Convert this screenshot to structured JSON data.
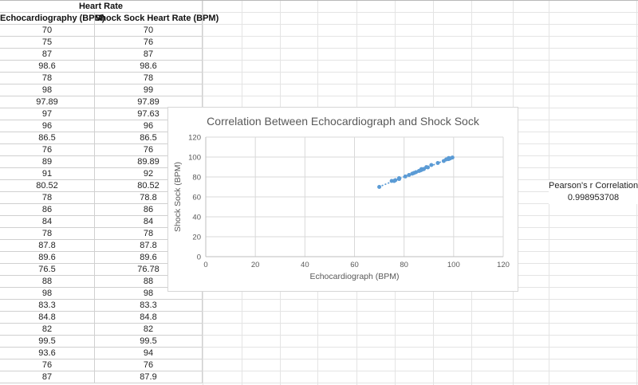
{
  "sheet": {
    "table": {
      "title": "Heart Rate",
      "columns": [
        "Echocardiography (BPM)",
        "Shock Sock Heart Rate (BPM)"
      ],
      "rows": [
        [
          "70",
          "70"
        ],
        [
          "75",
          "76"
        ],
        [
          "87",
          "87"
        ],
        [
          "98.6",
          "98.6"
        ],
        [
          "78",
          "78"
        ],
        [
          "98",
          "99"
        ],
        [
          "97.89",
          "97.89"
        ],
        [
          "97",
          "97.63"
        ],
        [
          "96",
          "96"
        ],
        [
          "86.5",
          "86.5"
        ],
        [
          "76",
          "76"
        ],
        [
          "89",
          "89.89"
        ],
        [
          "91",
          "92"
        ],
        [
          "80.52",
          "80.52"
        ],
        [
          "78",
          "78.8"
        ],
        [
          "86",
          "86"
        ],
        [
          "84",
          "84"
        ],
        [
          "78",
          "78"
        ],
        [
          "87.8",
          "87.8"
        ],
        [
          "89.6",
          "89.6"
        ],
        [
          "76.5",
          "76.78"
        ],
        [
          "88",
          "88"
        ],
        [
          "98",
          "98"
        ],
        [
          "83.3",
          "83.3"
        ],
        [
          "84.8",
          "84.8"
        ],
        [
          "82",
          "82"
        ],
        [
          "99.5",
          "99.5"
        ],
        [
          "93.6",
          "94"
        ],
        [
          "76",
          "76"
        ],
        [
          "87",
          "87.9"
        ]
      ]
    },
    "stats": {
      "label": "Pearson's r Correlation",
      "value": "0.998953708"
    }
  },
  "chart_data": {
    "type": "scatter",
    "title": "Correlation Between Echocardiograph and Shock Sock",
    "xlabel": "Echocardiograph (BPM)",
    "ylabel": "Shock Sock (BPM)",
    "xlim": [
      0,
      120
    ],
    "ylim": [
      0,
      120
    ],
    "xticks": [
      0,
      20,
      40,
      60,
      80,
      100,
      120
    ],
    "yticks": [
      0,
      20,
      40,
      60,
      80,
      100,
      120
    ],
    "grid": true,
    "legend": false,
    "marker_color": "#5B9BD5",
    "trendline": {
      "type": "linear",
      "style": "dotted",
      "color": "#5B9BD5"
    },
    "points": [
      [
        70,
        70
      ],
      [
        75,
        76
      ],
      [
        87,
        87
      ],
      [
        98.6,
        98.6
      ],
      [
        78,
        78
      ],
      [
        98,
        99
      ],
      [
        97.89,
        97.89
      ],
      [
        97,
        97.63
      ],
      [
        96,
        96
      ],
      [
        86.5,
        86.5
      ],
      [
        76,
        76
      ],
      [
        89,
        89.89
      ],
      [
        91,
        92
      ],
      [
        80.52,
        80.52
      ],
      [
        78,
        78.8
      ],
      [
        86,
        86
      ],
      [
        84,
        84
      ],
      [
        78,
        78
      ],
      [
        87.8,
        87.8
      ],
      [
        89.6,
        89.6
      ],
      [
        76.5,
        76.78
      ],
      [
        88,
        88
      ],
      [
        98,
        98
      ],
      [
        83.3,
        83.3
      ],
      [
        84.8,
        84.8
      ],
      [
        82,
        82
      ],
      [
        99.5,
        99.5
      ],
      [
        93.6,
        94
      ],
      [
        76,
        76
      ],
      [
        87,
        87.9
      ]
    ],
    "colors": {
      "text": "#595959",
      "gridline": "#D9D9D9",
      "axis": "#BFBFBF"
    }
  }
}
